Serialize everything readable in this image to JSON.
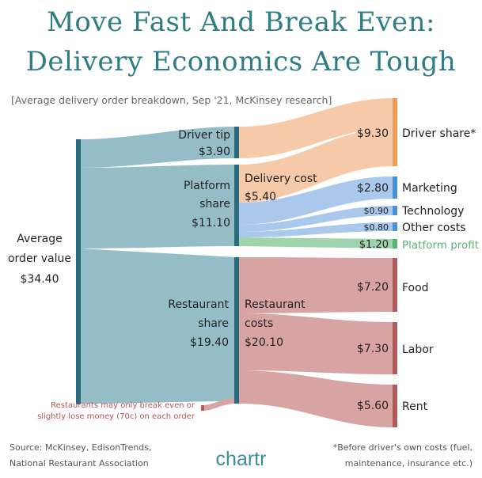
{
  "header": {
    "title_line1": "Move Fast And Break Even:",
    "title_line2": "Delivery Economics Are Tough",
    "subtitle": "[Average delivery order breakdown, Sep '21, McKinsey research]"
  },
  "nodes": {
    "average": {
      "line1": "Average",
      "line2": "order value",
      "value": "$34.40"
    },
    "driver_tip": {
      "line1": "Driver tip",
      "value": "$3.90"
    },
    "platform_share": {
      "line1": "Platform",
      "line2": "share",
      "value": "$11.10"
    },
    "restaurant_share": {
      "line1": "Restaurant",
      "line2": "share",
      "value": "$19.40"
    },
    "delivery_cost": {
      "line1": "Delivery cost",
      "value": "$5.40"
    },
    "restaurant_costs": {
      "line1": "Restaurant",
      "line2": "costs",
      "value": "$20.10"
    }
  },
  "outputs": {
    "driver_share": {
      "label": "Driver share*",
      "value": "$9.30"
    },
    "marketing": {
      "label": "Marketing",
      "value": "$2.80"
    },
    "technology": {
      "label": "Technology",
      "value": "$0.90"
    },
    "other_costs": {
      "label": "Other costs",
      "value": "$0.80"
    },
    "platform_profit": {
      "label": "Platform profit",
      "value": "$1.20"
    },
    "food": {
      "label": "Food",
      "value": "$7.20"
    },
    "labor": {
      "label": "Labor",
      "value": "$7.30"
    },
    "rent": {
      "label": "Rent",
      "value": "$5.60"
    }
  },
  "annotation": {
    "line1": "Restaurants may only break even or",
    "line2": "slightly lose money (70c) on each order"
  },
  "footer": {
    "source_line1": "Source: McKinsey, EdisonTrends,",
    "source_line2": "National Restaurant Association",
    "logo": "chartr",
    "note_line1": "*Before driver's own costs (fuel,",
    "note_line2": "maintenance, insurance etc.)"
  },
  "colors": {
    "title": "#2f7d84",
    "order_flow": "#8fb9c5",
    "node_bar": "#2b6b7f",
    "driver": "#f6c9a8",
    "driver_bar": "#ef9a5e",
    "platform_cost": "#a9c8ec",
    "platform_bar": "#4a90d9",
    "profit": "#9fd3ad",
    "profit_text": "#5bb276",
    "restaurant": "#d7a3a3",
    "restaurant_bar": "#b15a5a",
    "annotation_text": "#b35454"
  }
}
